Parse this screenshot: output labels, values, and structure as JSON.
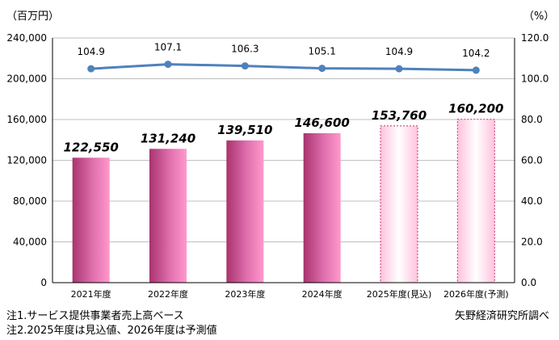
{
  "chart_data": {
    "type": "bar",
    "categories": [
      "2021年度",
      "2022年度",
      "2023年度",
      "2024年度",
      "2025年度(見込)",
      "2026年度(予測)"
    ],
    "series": [
      {
        "values": [
          122550,
          131240,
          139510,
          146600,
          153760,
          160200
        ],
        "data_labels": [
          "122,550",
          "131,240",
          "139,510",
          "146,600",
          "153,760",
          "160,200"
        ]
      },
      {
        "type": "line",
        "axis": "right",
        "values": [
          104.9,
          107.1,
          106.3,
          105.1,
          104.9,
          104.2
        ],
        "data_labels": [
          "104.9",
          "107.1",
          "106.3",
          "105.1",
          "104.9",
          "104.2"
        ]
      }
    ],
    "forecast_from_index": 4,
    "ylim": [
      0,
      240000
    ],
    "y2lim": [
      0,
      120
    ],
    "yticks": [
      "0",
      "40,000",
      "80,000",
      "120,000",
      "160,000",
      "200,000",
      "240,000"
    ],
    "y2ticks": [
      "0.0",
      "20.0",
      "40.0",
      "60.0",
      "80.0",
      "100.0",
      "120.0"
    ],
    "ylabel": "（百万円）",
    "y2label": "（%）",
    "grid": true,
    "colors": {
      "bar_dark": "#a8336e",
      "bar_light": "#ff99cc",
      "line": "#4f81bd"
    }
  },
  "notes": [
    "注1.サービス提供事業者売上高ベース",
    "注2.2025年度は見込値、2026年度は予測値"
  ],
  "source": "矢野経済研究所調べ"
}
